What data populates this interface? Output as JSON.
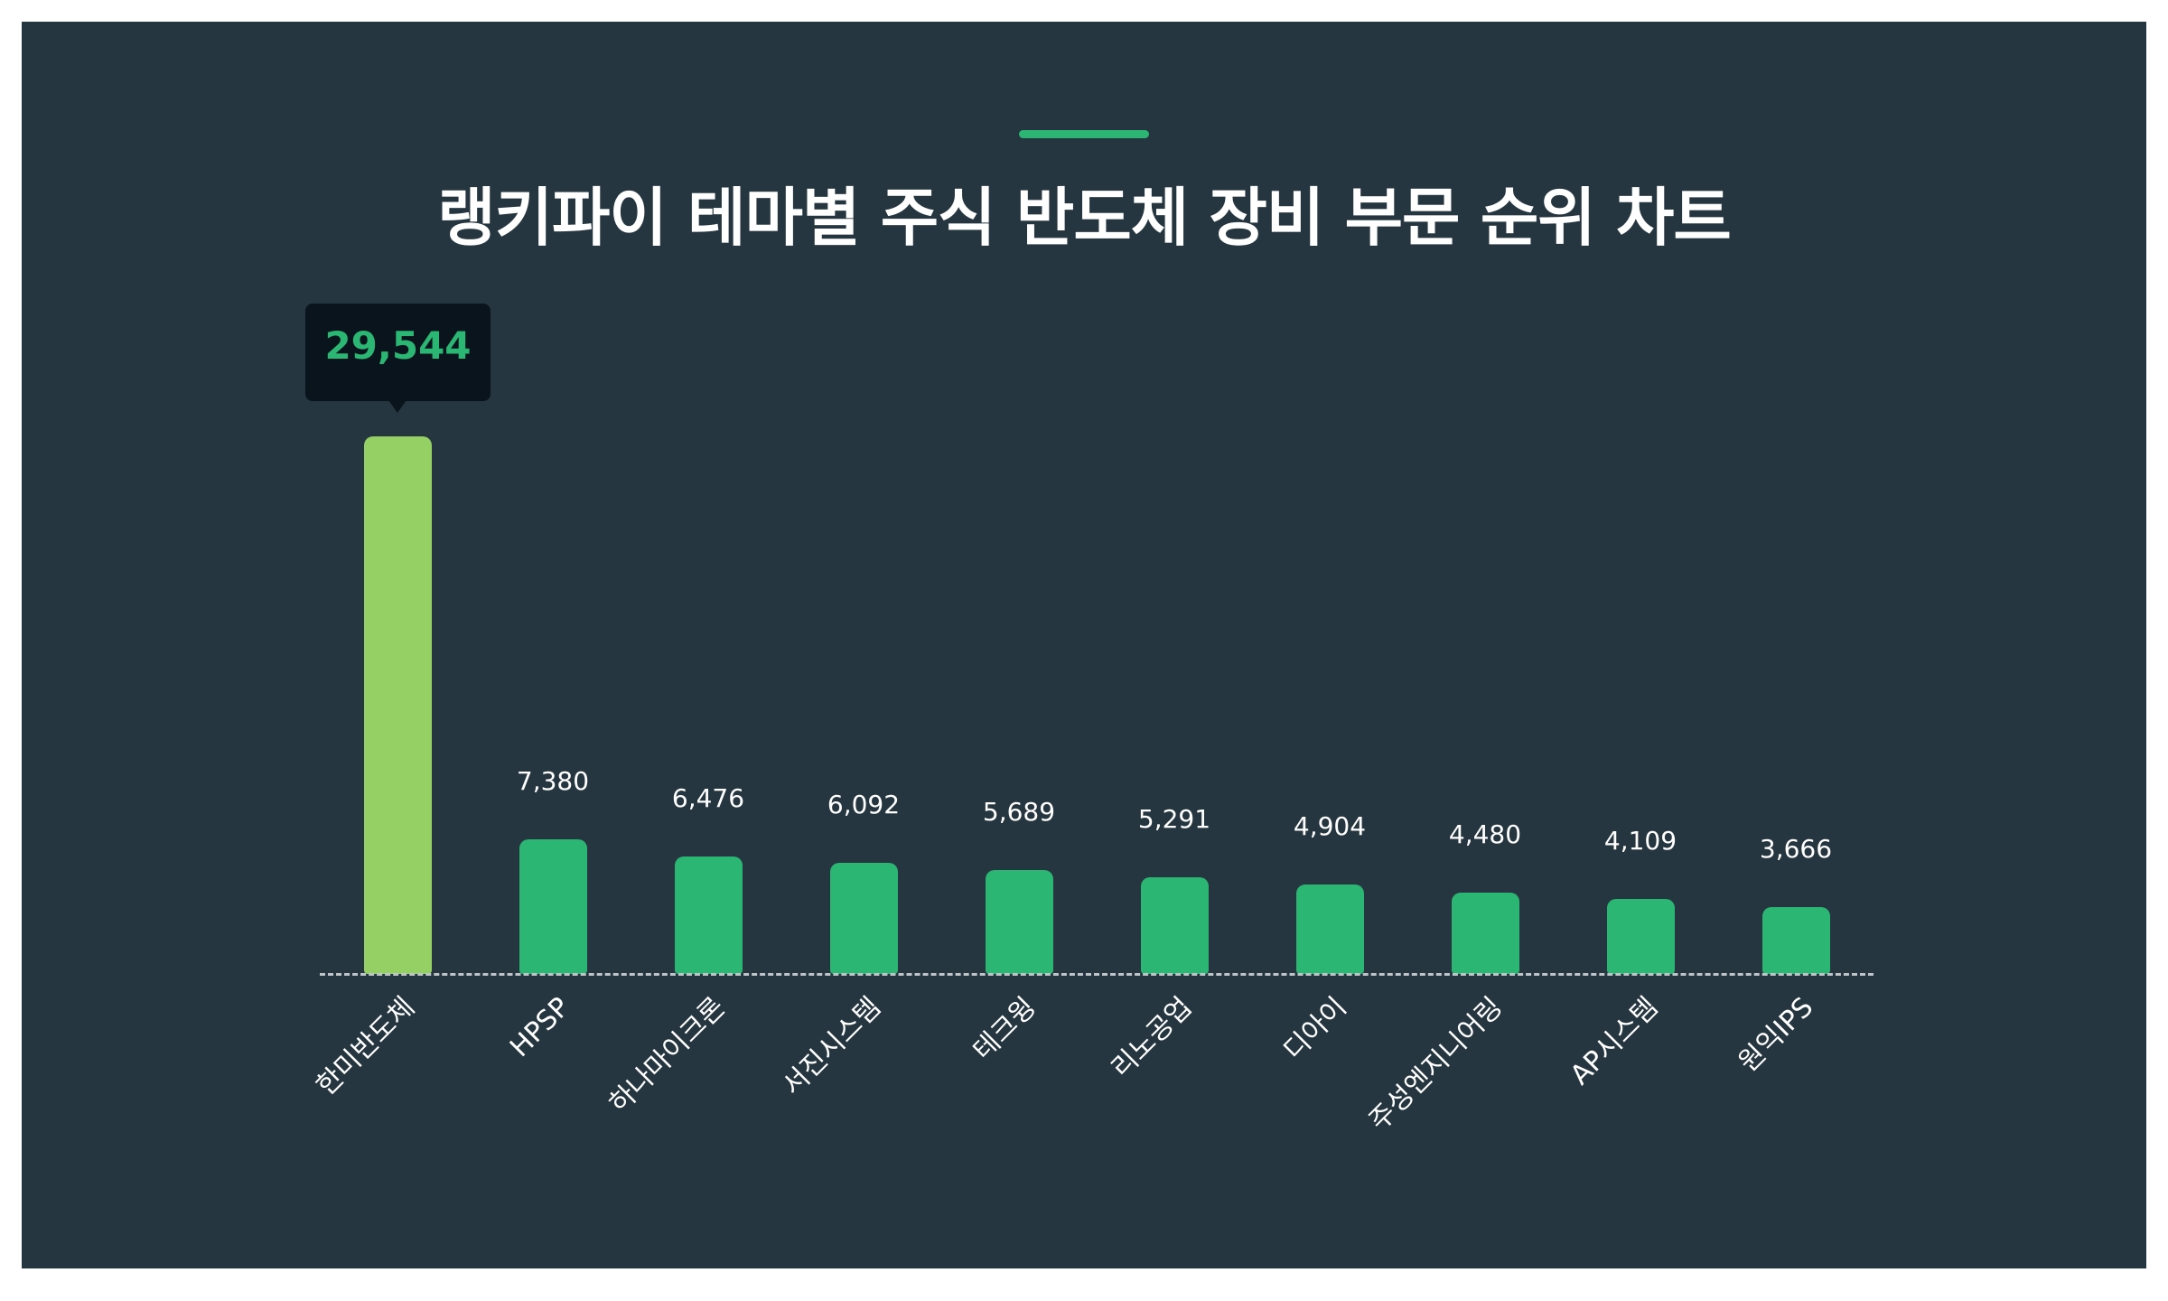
{
  "header": {
    "title": "랭키파이 테마별 주식 반도체 장비 부문 순위 차트"
  },
  "colors": {
    "background": "#263640",
    "accent": "#2BB673",
    "highlight_bar": "#94D064",
    "bar": "#2BB673",
    "tooltip_bg": "#0A141C"
  },
  "tooltip": {
    "value": "29,544"
  },
  "bars": [
    {
      "label": "한미반도체",
      "value_label": "29,544"
    },
    {
      "label": "HPSP",
      "value_label": "7,380"
    },
    {
      "label": "하나마이크론",
      "value_label": "6,476"
    },
    {
      "label": "서진시스템",
      "value_label": "6,092"
    },
    {
      "label": "테크윙",
      "value_label": "5,689"
    },
    {
      "label": "리노공업",
      "value_label": "5,291"
    },
    {
      "label": "디아이",
      "value_label": "4,904"
    },
    {
      "label": "주성엔지니어링",
      "value_label": "4,480"
    },
    {
      "label": "AP시스템",
      "value_label": "4,109"
    },
    {
      "label": "원익IPS",
      "value_label": "3,666"
    }
  ],
  "chart_data": {
    "type": "bar",
    "title": "랭키파이 테마별 주식 반도체 장비 부문 순위 차트",
    "categories": [
      "한미반도체",
      "HPSP",
      "하나마이크론",
      "서진시스템",
      "테크윙",
      "리노공업",
      "디아이",
      "주성엔지니어링",
      "AP시스템",
      "원익IPS"
    ],
    "values": [
      29544,
      7380,
      6476,
      6092,
      5689,
      5291,
      4904,
      4480,
      4109,
      3666
    ],
    "xlabel": "",
    "ylabel": "",
    "ylim": [
      0,
      29544
    ],
    "grid": false,
    "legend": null,
    "highlighted": {
      "category": "한미반도체",
      "value": 29544
    }
  }
}
